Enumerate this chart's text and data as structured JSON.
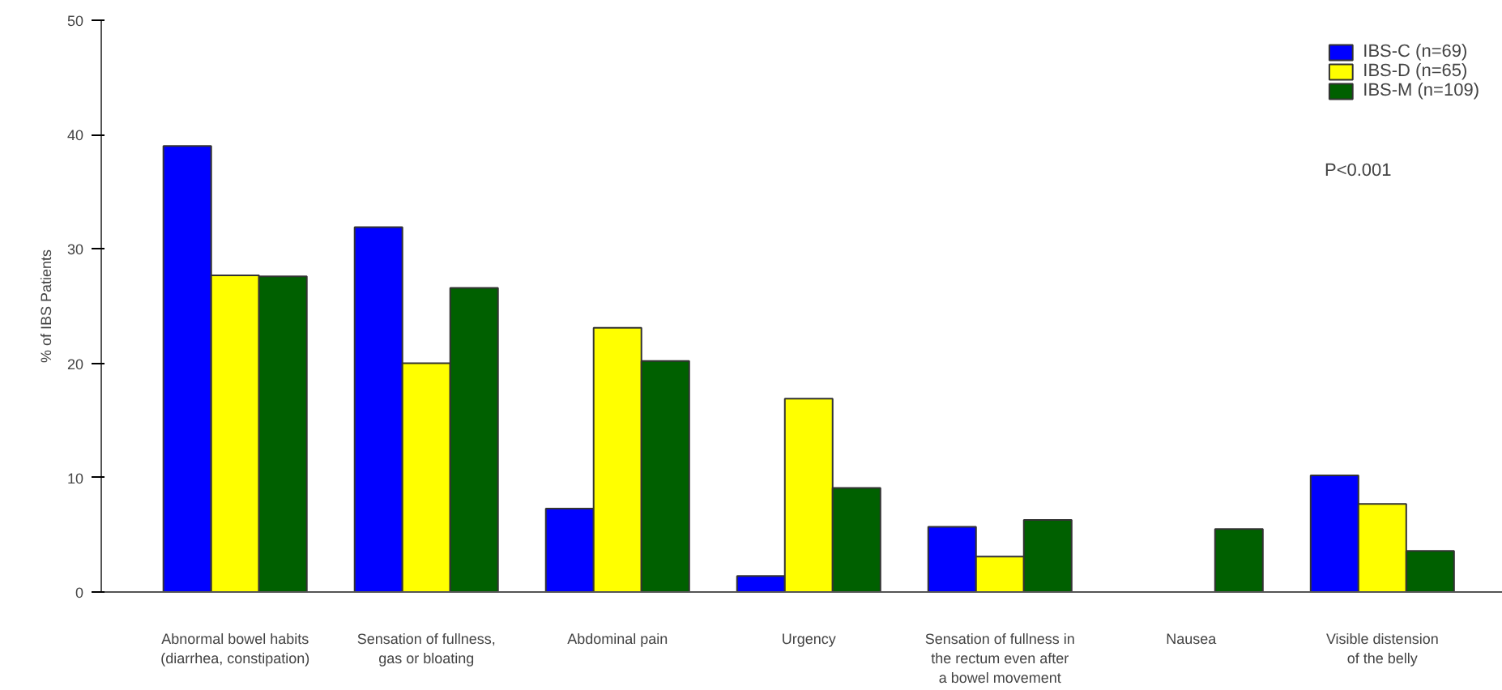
{
  "chart_data": {
    "type": "bar",
    "ylabel": "% of IBS Patients",
    "categories": [
      "Abnormal bowel habits\n(diarrhea, constipation)",
      "Sensation of fullness,\ngas or bloating",
      "Abdominal pain",
      "Urgency",
      "Sensation of fullness in\nthe rectum even after\na bowel movement",
      "Nausea",
      "Visible distension\nof the belly"
    ],
    "series": [
      {
        "name": "IBS-C (n=69)",
        "color": "#0000ff",
        "values": [
          39,
          31.9,
          7.3,
          1.4,
          5.7,
          null,
          10.2
        ]
      },
      {
        "name": "IBS-D (n=65)",
        "color": "#ffff00",
        "values": [
          27.7,
          20,
          23.1,
          16.9,
          3.1,
          null,
          7.7
        ]
      },
      {
        "name": "IBS-M (n=109)",
        "color": "#006000",
        "values": [
          27.6,
          26.6,
          20.2,
          9.1,
          6.3,
          5.5,
          3.6
        ]
      }
    ],
    "ylim": [
      0,
      50
    ],
    "yticks": [
      0,
      10,
      20,
      30,
      40,
      50
    ],
    "grid": false,
    "legend": "top right",
    "annotations": [
      "P<0.001"
    ]
  }
}
